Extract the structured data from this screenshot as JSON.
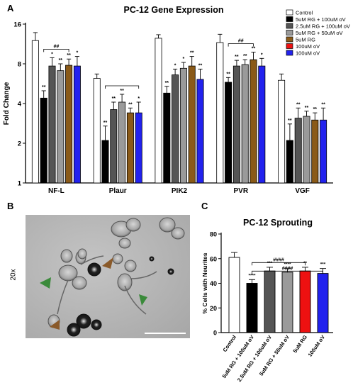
{
  "panel_letters": {
    "a": "A",
    "b": "B",
    "c": "C"
  },
  "chart_data": [
    {
      "type": "bar",
      "title": "PC-12 Gene Expression",
      "ylabel": "Fold Change",
      "xlabel": "",
      "yscale": "log2",
      "ylim": [
        1,
        16
      ],
      "yticks": [
        1,
        2,
        4,
        8,
        16
      ],
      "categories": [
        "NF-L",
        "Plaur",
        "PIK2",
        "PVR",
        "VGF"
      ],
      "legend_position": "top-right",
      "series": [
        {
          "name": "Control",
          "color": "#ffffff",
          "values": [
            12.0,
            6.2,
            12.5,
            11.6,
            6.0
          ],
          "errors": [
            1.8,
            0.5,
            0.8,
            1.8,
            0.7
          ],
          "sig": [
            "",
            "",
            "",
            "",
            ""
          ]
        },
        {
          "name": "5uM RG + 100uM oV",
          "color": "#000000",
          "values": [
            4.4,
            2.1,
            4.8,
            5.8,
            2.1
          ],
          "errors": [
            0.6,
            0.6,
            0.6,
            0.5,
            0.7
          ],
          "sig": [
            "**",
            "**",
            "**",
            "**",
            "**"
          ]
        },
        {
          "name": "2.5uM RG + 100uM oV",
          "color": "#555555",
          "values": [
            7.7,
            3.6,
            6.6,
            7.7,
            3.1
          ],
          "errors": [
            1.2,
            0.5,
            0.7,
            0.8,
            0.6
          ],
          "sig": [
            "*",
            "**",
            "*",
            "**",
            "**"
          ]
        },
        {
          "name": "5uM RG + 50uM oV",
          "color": "#9a9a9a",
          "values": [
            7.1,
            4.1,
            7.4,
            7.9,
            3.2
          ],
          "errors": [
            0.9,
            0.6,
            0.8,
            0.7,
            0.3
          ],
          "sig": [
            "**",
            "**",
            "*",
            "**",
            "**"
          ]
        },
        {
          "name": "5uM RG",
          "color": "#8a5a18",
          "values": [
            7.8,
            3.4,
            7.7,
            8.6,
            3.0
          ],
          "errors": [
            0.9,
            0.3,
            1.4,
            1.2,
            0.4
          ],
          "sig": [
            "**",
            "**",
            "**",
            "**",
            "**"
          ]
        },
        {
          "name": "100uM oV",
          "color": "#ee1111",
          "values": [
            null,
            null,
            null,
            null,
            null
          ],
          "errors": [
            0,
            0,
            0,
            0,
            0
          ],
          "sig": [
            "",
            "",
            "",
            "",
            ""
          ]
        },
        {
          "name": "100uM oV",
          "color": "#2222ee",
          "values": [
            7.7,
            3.4,
            6.1,
            7.7,
            3.0
          ],
          "errors": [
            1.4,
            0.7,
            1.2,
            1.1,
            0.7
          ],
          "sig": [
            "*",
            "*",
            "**",
            "*",
            "**"
          ]
        }
      ],
      "brackets": [
        {
          "category": "NF-L",
          "from_series": 1,
          "to_series": 4,
          "label": "##"
        },
        {
          "category": "Plaur",
          "from_series": 1,
          "to_series": 5,
          "label": "##"
        },
        {
          "category": "Plaur",
          "from_series": 1,
          "to_series": 6,
          "label": ""
        },
        {
          "category": "PVR",
          "from_series": 1,
          "to_series": 4,
          "label": "##"
        }
      ]
    },
    {
      "type": "bar",
      "title": "PC-12 Sprouting",
      "ylabel": "% Cells with Neurites",
      "xlabel": "",
      "ylim": [
        0,
        80
      ],
      "yticks": [
        0,
        20,
        40,
        60,
        80
      ],
      "categories": [
        "Control",
        "5uM RG + 100uM oV",
        "2.5uM RG + 100uM oV",
        "5uM RG + 50uM oV",
        "5uM RG",
        "100uM oV"
      ],
      "colors": [
        "#ffffff",
        "#000000",
        "#555555",
        "#9a9a9a",
        "#ee1111",
        "#2222ee"
      ],
      "values": [
        61,
        40,
        50,
        49,
        50,
        48
      ],
      "errors": [
        4,
        3,
        3,
        3,
        3,
        4
      ],
      "sig": [
        "",
        "****",
        "***",
        "****",
        "**",
        "***"
      ],
      "brackets": [
        {
          "from": 1,
          "to": 4,
          "label": "####"
        },
        {
          "from": 1,
          "to": 5,
          "label": "####"
        }
      ]
    }
  ],
  "micrograph": {
    "magnification": "20x"
  },
  "icons": [
    "arrowhead-brown-icon",
    "arrowhead-green-icon",
    "scale-bar"
  ]
}
